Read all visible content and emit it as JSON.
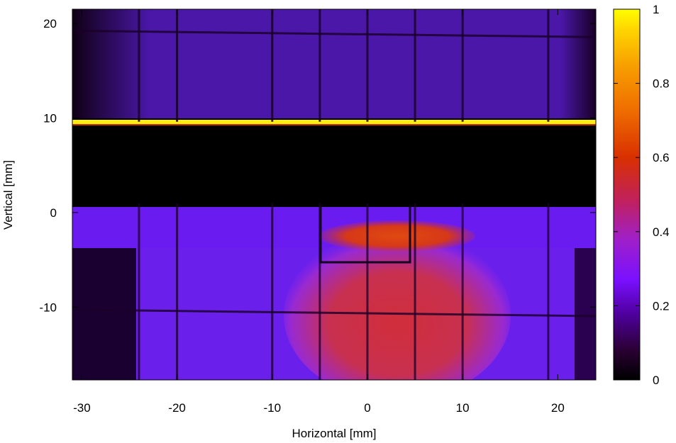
{
  "chart_data": {
    "type": "heatmap",
    "xlabel": "Horizontal [mm]",
    "ylabel": "Vertical [mm]",
    "xlim": [
      -31,
      24
    ],
    "ylim": [
      -17.7,
      21.5
    ],
    "x_ticks": [
      -30,
      -20,
      -10,
      0,
      10,
      20
    ],
    "y_ticks": [
      -10,
      0,
      10,
      20
    ],
    "x_tick_labels": [
      "-30",
      "-20",
      "-10",
      "0",
      "10",
      "20"
    ],
    "y_tick_labels": [
      "-10",
      "0",
      "10",
      "20"
    ],
    "colorbar": {
      "range": [
        0,
        1
      ],
      "ticks": [
        0,
        0.2,
        0.4,
        0.6,
        0.8,
        1
      ],
      "tick_labels": [
        "0",
        "0.2",
        "0.4",
        "0.6",
        "0.8",
        "1"
      ],
      "colormap": [
        "#000000",
        "#2a0033",
        "#5000a0",
        "#7a10ff",
        "#a020c8",
        "#c02060",
        "#d83000",
        "#ee6a00",
        "#f8a000",
        "#ffd800",
        "#ffff00"
      ]
    },
    "regions": [
      {
        "region": "upper grid panel",
        "x": [
          -31,
          24
        ],
        "y": [
          10,
          21.5
        ],
        "value": 0.12
      },
      {
        "region": "bright edge line",
        "x": [
          -31,
          24
        ],
        "y": [
          9.3,
          9.8
        ],
        "value": 1.0
      },
      {
        "region": "dark gap",
        "x": [
          -31,
          24
        ],
        "y": [
          1,
          9.3
        ],
        "value": 0.0
      },
      {
        "region": "horizontal band",
        "x": [
          -31,
          24
        ],
        "y": [
          -3.8,
          0.3
        ],
        "value": 0.25
      },
      {
        "region": "lower panel",
        "x": [
          -24,
          23
        ],
        "y": [
          -17.7,
          -3.8
        ],
        "value": 0.22
      },
      {
        "region": "central beam spot",
        "x": [
          -9,
          14
        ],
        "y": [
          -17.7,
          -5
        ],
        "value": 0.5
      },
      {
        "region": "hot spot",
        "x": [
          -3,
          13
        ],
        "y": [
          -4.5,
          -1
        ],
        "value": 0.6
      }
    ],
    "grid_lines_x": [
      -24,
      -20,
      -10,
      -5,
      0,
      5,
      10,
      19
    ],
    "grid_lines_y": [
      19,
      -10.5
    ]
  }
}
